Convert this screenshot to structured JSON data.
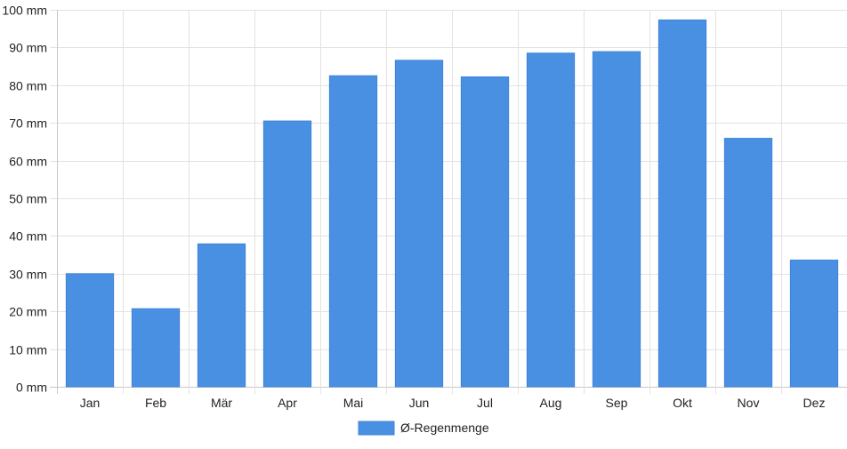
{
  "chart_data": {
    "type": "bar",
    "title": "",
    "xlabel": "",
    "ylabel": "",
    "categories": [
      "Jan",
      "Feb",
      "Mär",
      "Apr",
      "Mai",
      "Jun",
      "Jul",
      "Aug",
      "Sep",
      "Okt",
      "Nov",
      "Dez"
    ],
    "series": [
      {
        "name": "Ø-Regenmenge",
        "color": "#4a90e2",
        "values": [
          30,
          20.7,
          37.9,
          70.5,
          82.5,
          86.6,
          82.2,
          88.5,
          88.9,
          97.3,
          65.9,
          33.6
        ]
      }
    ],
    "ylim": [
      0,
      100
    ],
    "y_ticks": [
      0,
      10,
      20,
      30,
      40,
      50,
      60,
      70,
      80,
      90,
      100
    ],
    "y_unit": "mm",
    "grid": true,
    "legend_position": "bottom"
  }
}
